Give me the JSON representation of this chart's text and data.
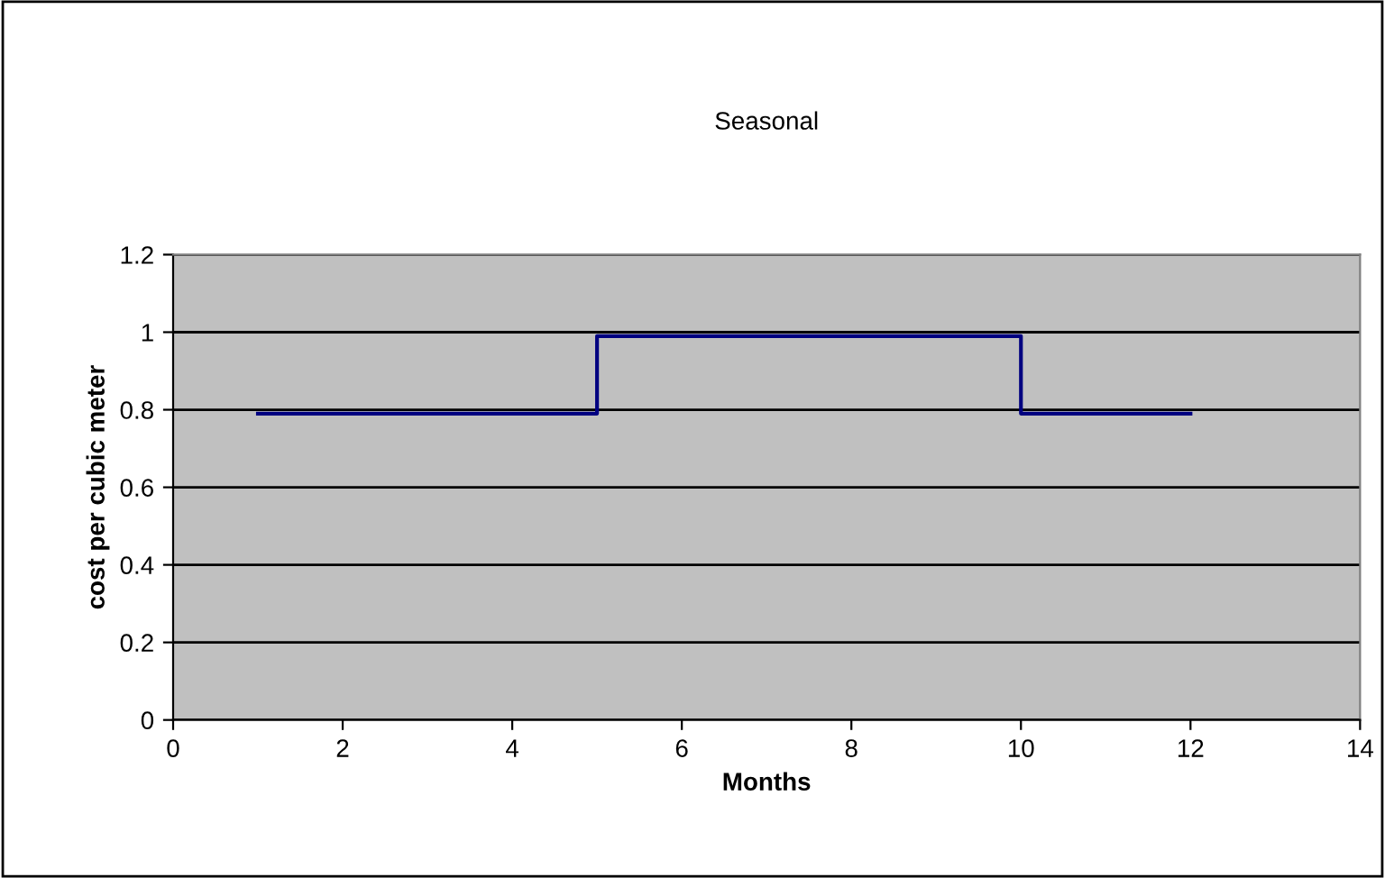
{
  "chart_data": {
    "type": "step",
    "title": "Seasonal",
    "xlabel": "Months",
    "ylabel": "cost per cubic meter",
    "x": [
      1,
      5,
      10,
      12
    ],
    "series": [
      {
        "color": "#000080",
        "values": [
          0.79,
          0.99,
          0.79,
          0.79
        ]
      }
    ],
    "xlim": [
      0,
      14
    ],
    "xticks": [
      0,
      2,
      4,
      6,
      8,
      10,
      12,
      14
    ],
    "ylim": [
      0,
      1.2
    ],
    "yticks": [
      0,
      0.2,
      0.4,
      0.6,
      0.8,
      1,
      1.2
    ],
    "grid": "y",
    "legend": false,
    "marker": "none",
    "line_style": "solid"
  }
}
